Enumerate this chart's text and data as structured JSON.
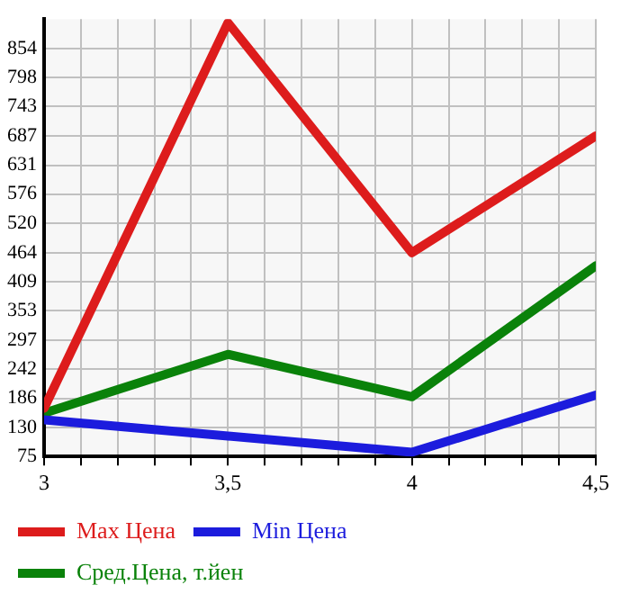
{
  "chart_data": {
    "type": "line",
    "x": [
      3,
      3.5,
      4,
      4.5
    ],
    "series": [
      {
        "name": "Max Цена",
        "color": "#dd1c1c",
        "values": [
          167,
          903,
          464,
          687
        ]
      },
      {
        "name": "Min Цена",
        "color": "#1c1cdd",
        "values": [
          145,
          114,
          83,
          192
        ]
      },
      {
        "name": "Сред.Цена, т.йен",
        "color": "#0a820a",
        "values": [
          158,
          270,
          189,
          439
        ]
      }
    ],
    "xlim": [
      3,
      4.5
    ],
    "xticks": [
      {
        "value": 3,
        "label": "3"
      },
      {
        "value": 3.1,
        "label": null
      },
      {
        "value": 3.2,
        "label": null
      },
      {
        "value": 3.3,
        "label": null
      },
      {
        "value": 3.4,
        "label": null
      },
      {
        "value": 3.5,
        "label": "3,5"
      },
      {
        "value": 3.6,
        "label": null
      },
      {
        "value": 3.7,
        "label": null
      },
      {
        "value": 3.8,
        "label": null
      },
      {
        "value": 3.9,
        "label": null
      },
      {
        "value": 4,
        "label": "4"
      },
      {
        "value": 4.1,
        "label": null
      },
      {
        "value": 4.2,
        "label": null
      },
      {
        "value": 4.3,
        "label": null
      },
      {
        "value": 4.4,
        "label": null
      },
      {
        "value": 4.5,
        "label": "4,5"
      }
    ],
    "ylim": [
      75,
      910
    ],
    "yticks": [
      75,
      130,
      186,
      242,
      297,
      353,
      409,
      464,
      520,
      576,
      631,
      687,
      743,
      798,
      854
    ],
    "grid": true,
    "legend": "bottom",
    "marker": "none",
    "line_style": "solid"
  }
}
